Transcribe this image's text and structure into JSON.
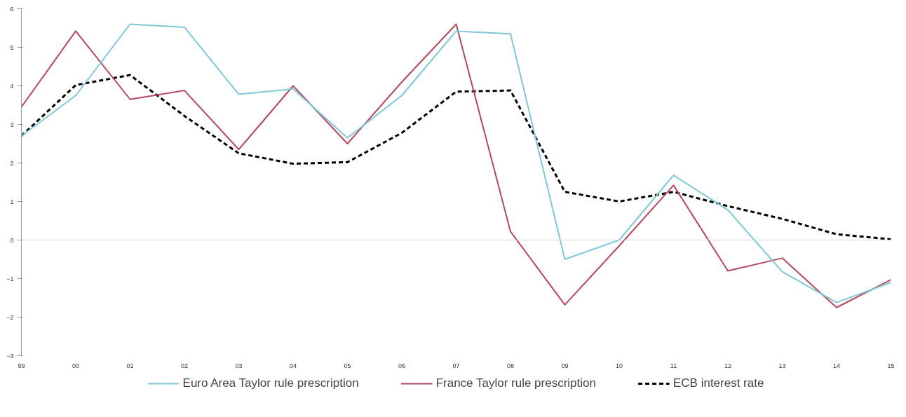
{
  "chart_data": {
    "type": "line",
    "categories": [
      "99",
      "00",
      "01",
      "02",
      "03",
      "04",
      "05",
      "06",
      "07",
      "08",
      "09",
      "10",
      "11",
      "12",
      "13",
      "14",
      "15"
    ],
    "series": [
      {
        "name": "Euro Area Taylor rule prescription",
        "color": "#7ec8d8",
        "line_style": "solid",
        "values": [
          2.7,
          3.75,
          5.6,
          5.52,
          3.78,
          3.92,
          2.65,
          3.75,
          5.42,
          5.35,
          -0.5,
          0.0,
          1.68,
          0.78,
          -0.82,
          -1.62,
          -1.1
        ]
      },
      {
        "name": "France Taylor rule prescription",
        "color": "#b5475f",
        "line_style": "solid",
        "values": [
          3.45,
          5.42,
          3.65,
          3.88,
          2.35,
          4.0,
          2.5,
          4.1,
          5.6,
          0.22,
          -1.68,
          -0.15,
          1.42,
          -0.8,
          -0.47,
          -1.75,
          -1.03
        ]
      },
      {
        "name": "ECB interest rate",
        "color": "#000000",
        "line_style": "dashed",
        "values": [
          2.7,
          4.02,
          4.28,
          3.22,
          2.25,
          1.98,
          2.02,
          2.78,
          3.85,
          3.88,
          1.25,
          1.0,
          1.25,
          0.88,
          0.55,
          0.15,
          0.02
        ]
      }
    ],
    "ylim": [
      -3,
      6
    ],
    "yticks": [
      -3,
      -2,
      -1,
      0,
      1,
      2,
      3,
      4,
      5,
      6
    ],
    "ref_lines": [
      {
        "axis": "y",
        "value": 0,
        "color": "#d9d9d9"
      }
    ],
    "grid": false,
    "legend": "bottom",
    "marker": "none"
  }
}
